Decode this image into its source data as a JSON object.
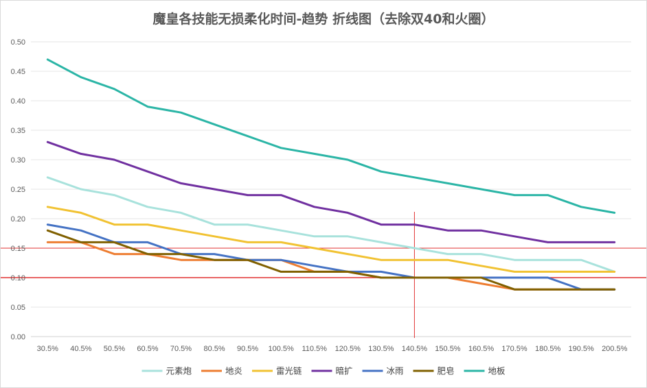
{
  "chart_data": {
    "type": "line",
    "title": "魔皇各技能无损柔化时间-趋势 折线图（去除双40和火圈）",
    "xlabel": "",
    "ylabel": "",
    "categories": [
      "30.5%",
      "40.5%",
      "50.5%",
      "60.5%",
      "70.5%",
      "80.5%",
      "90.5%",
      "100.5%",
      "110.5%",
      "120.5%",
      "130.5%",
      "140.5%",
      "150.5%",
      "160.5%",
      "170.5%",
      "180.5%",
      "190.5%",
      "200.5%"
    ],
    "ylim": [
      0,
      0.5
    ],
    "yticks": [
      "0.00",
      "0.05",
      "0.10",
      "0.15",
      "0.20",
      "0.25",
      "0.30",
      "0.35",
      "0.40",
      "0.45",
      "0.50"
    ],
    "grid": true,
    "legend_position": "bottom",
    "series": [
      {
        "name": "元素炮",
        "color": "#a8e2dc",
        "values": [
          0.27,
          0.25,
          0.24,
          0.22,
          0.21,
          0.19,
          0.19,
          0.18,
          0.17,
          0.17,
          0.16,
          0.15,
          0.14,
          0.14,
          0.13,
          0.13,
          0.13,
          0.11
        ]
      },
      {
        "name": "地炎",
        "color": "#ed7d31",
        "values": [
          0.16,
          0.16,
          0.14,
          0.14,
          0.13,
          0.13,
          0.13,
          0.13,
          0.11,
          0.11,
          0.1,
          0.1,
          0.1,
          0.09,
          0.08,
          0.08,
          0.08,
          0.08
        ]
      },
      {
        "name": "雷光链",
        "color": "#f1c232",
        "values": [
          0.22,
          0.21,
          0.19,
          0.19,
          0.18,
          0.17,
          0.16,
          0.16,
          0.15,
          0.14,
          0.13,
          0.13,
          0.13,
          0.12,
          0.11,
          0.11,
          0.11,
          0.11
        ]
      },
      {
        "name": "暗扩",
        "color": "#7030a0",
        "values": [
          0.33,
          0.31,
          0.3,
          0.28,
          0.26,
          0.25,
          0.24,
          0.24,
          0.22,
          0.21,
          0.19,
          0.19,
          0.18,
          0.18,
          0.17,
          0.16,
          0.16,
          0.16
        ]
      },
      {
        "name": "冰雨",
        "color": "#4472c4",
        "values": [
          0.19,
          0.18,
          0.16,
          0.16,
          0.14,
          0.14,
          0.13,
          0.13,
          0.12,
          0.11,
          0.11,
          0.1,
          0.1,
          0.1,
          0.1,
          0.1,
          0.08,
          0.08
        ]
      },
      {
        "name": "肥皂",
        "color": "#806000",
        "values": [
          0.18,
          0.16,
          0.16,
          0.14,
          0.14,
          0.13,
          0.13,
          0.11,
          0.11,
          0.11,
          0.1,
          0.1,
          0.1,
          0.1,
          0.08,
          0.08,
          0.08,
          0.08
        ]
      },
      {
        "name": "地板",
        "color": "#2bb5a6",
        "values": [
          0.47,
          0.44,
          0.42,
          0.39,
          0.38,
          0.36,
          0.34,
          0.32,
          0.31,
          0.3,
          0.28,
          0.27,
          0.26,
          0.25,
          0.24,
          0.24,
          0.22,
          0.21
        ]
      }
    ],
    "reference_lines": {
      "color": "#e03030",
      "horizontal_y": [
        0.15,
        0.1
      ],
      "vertical_x": "140.5%"
    }
  }
}
